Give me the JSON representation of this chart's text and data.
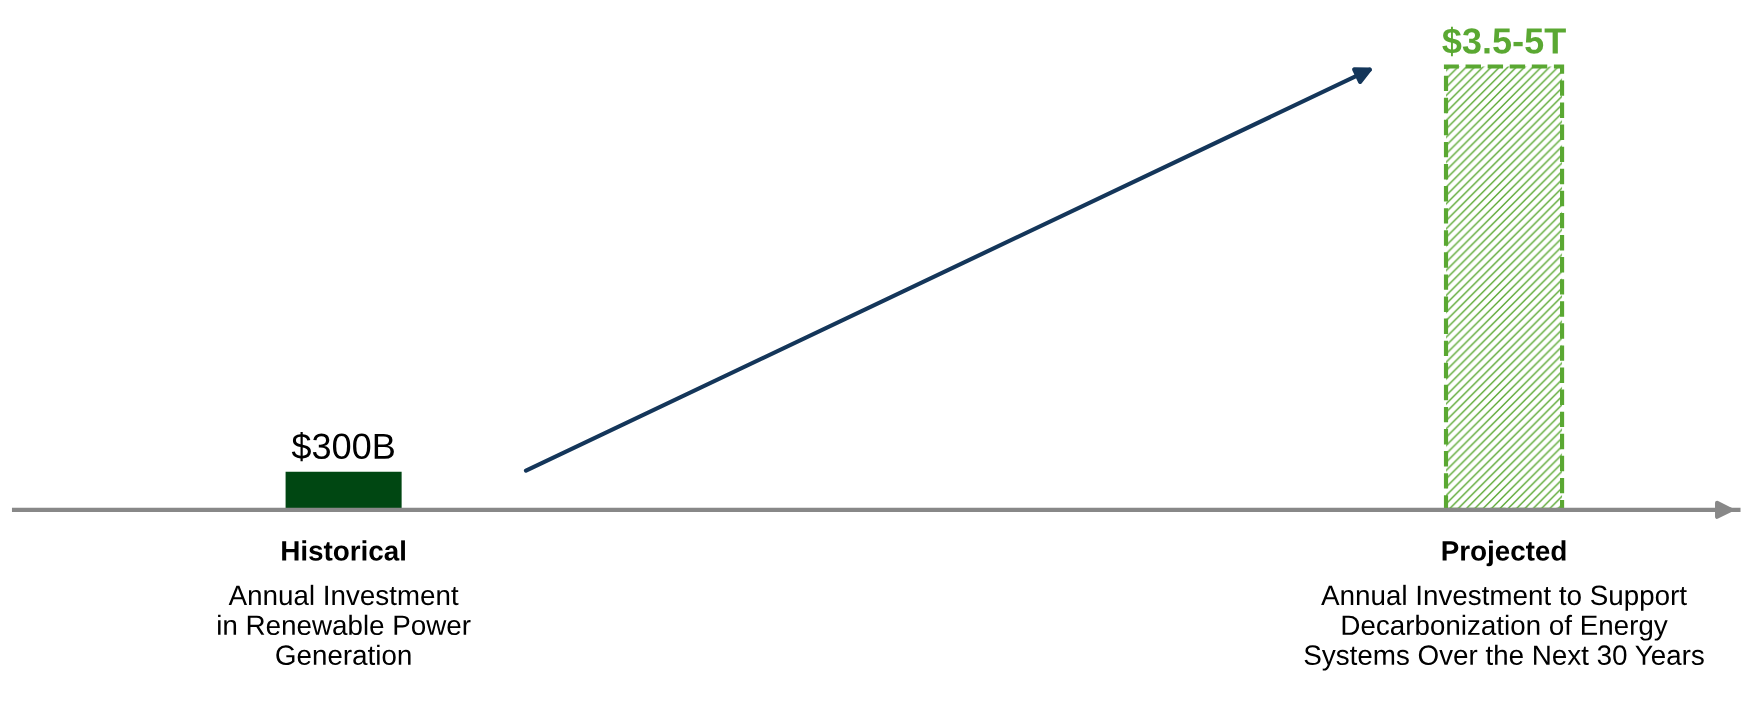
{
  "chart_data": {
    "type": "bar",
    "categories": [
      "Historical\nAnnual Investment\nin Renewable Power\nGeneration",
      "Projected\nAnnual Investment to Support\nDecarbonization of Energy\nSystems Over the Next 30 Years"
    ],
    "values": [
      300,
      3500
    ],
    "colors": [
      "#004712",
      "#5aa832"
    ],
    "value_labels": [
      "$300B",
      "$3.5-5T"
    ],
    "legend": false
  }
}
